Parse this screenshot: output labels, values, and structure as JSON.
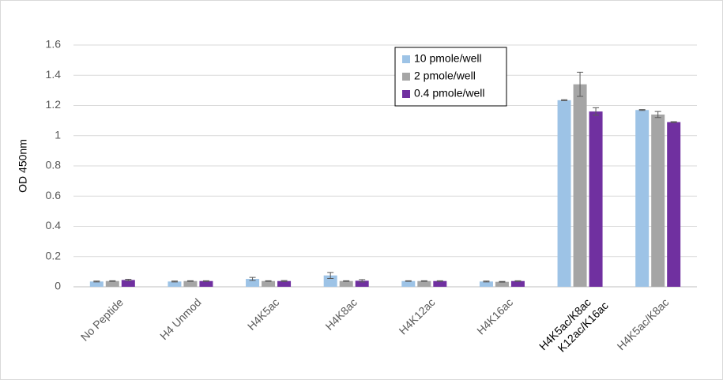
{
  "chart_data": {
    "type": "bar",
    "y_label": "OD 450nm",
    "categories": [
      "No Peptide",
      "H4 Unmod",
      "H4K5ac",
      "H4K8ac",
      "H4K12ac",
      "H4K16ac",
      [
        "H4K5ac/K8ac",
        "K12ac/K16ac"
      ],
      "H4K5ac/K8ac"
    ],
    "series": [
      {
        "name": "10 pmole/well",
        "color": "#9dc3e6",
        "values": [
          0.035,
          0.035,
          0.052,
          0.075,
          0.038,
          0.035,
          1.235,
          1.17
        ],
        "errors": [
          0.003,
          0.003,
          0.01,
          0.02,
          0.002,
          0.003,
          0.003,
          0.003
        ]
      },
      {
        "name": "2 pmole/well",
        "color": "#a5a5a5",
        "values": [
          0.038,
          0.038,
          0.038,
          0.038,
          0.038,
          0.033,
          1.34,
          1.14
        ],
        "errors": [
          0.002,
          0.002,
          0.002,
          0.002,
          0.002,
          0.002,
          0.08,
          0.02
        ]
      },
      {
        "name": "0.4 pmole/well",
        "color": "#7030a0",
        "values": [
          0.045,
          0.038,
          0.038,
          0.04,
          0.038,
          0.038,
          1.16,
          1.09
        ],
        "errors": [
          0.005,
          0.002,
          0.003,
          0.008,
          0.002,
          0.002,
          0.025,
          0.003
        ]
      }
    ],
    "ylim": [
      0,
      1.6
    ],
    "yticks": [
      0,
      0.2,
      0.4,
      0.6,
      0.8,
      1,
      1.2,
      1.4,
      1.6
    ],
    "grid": true,
    "legend": "top-right"
  }
}
